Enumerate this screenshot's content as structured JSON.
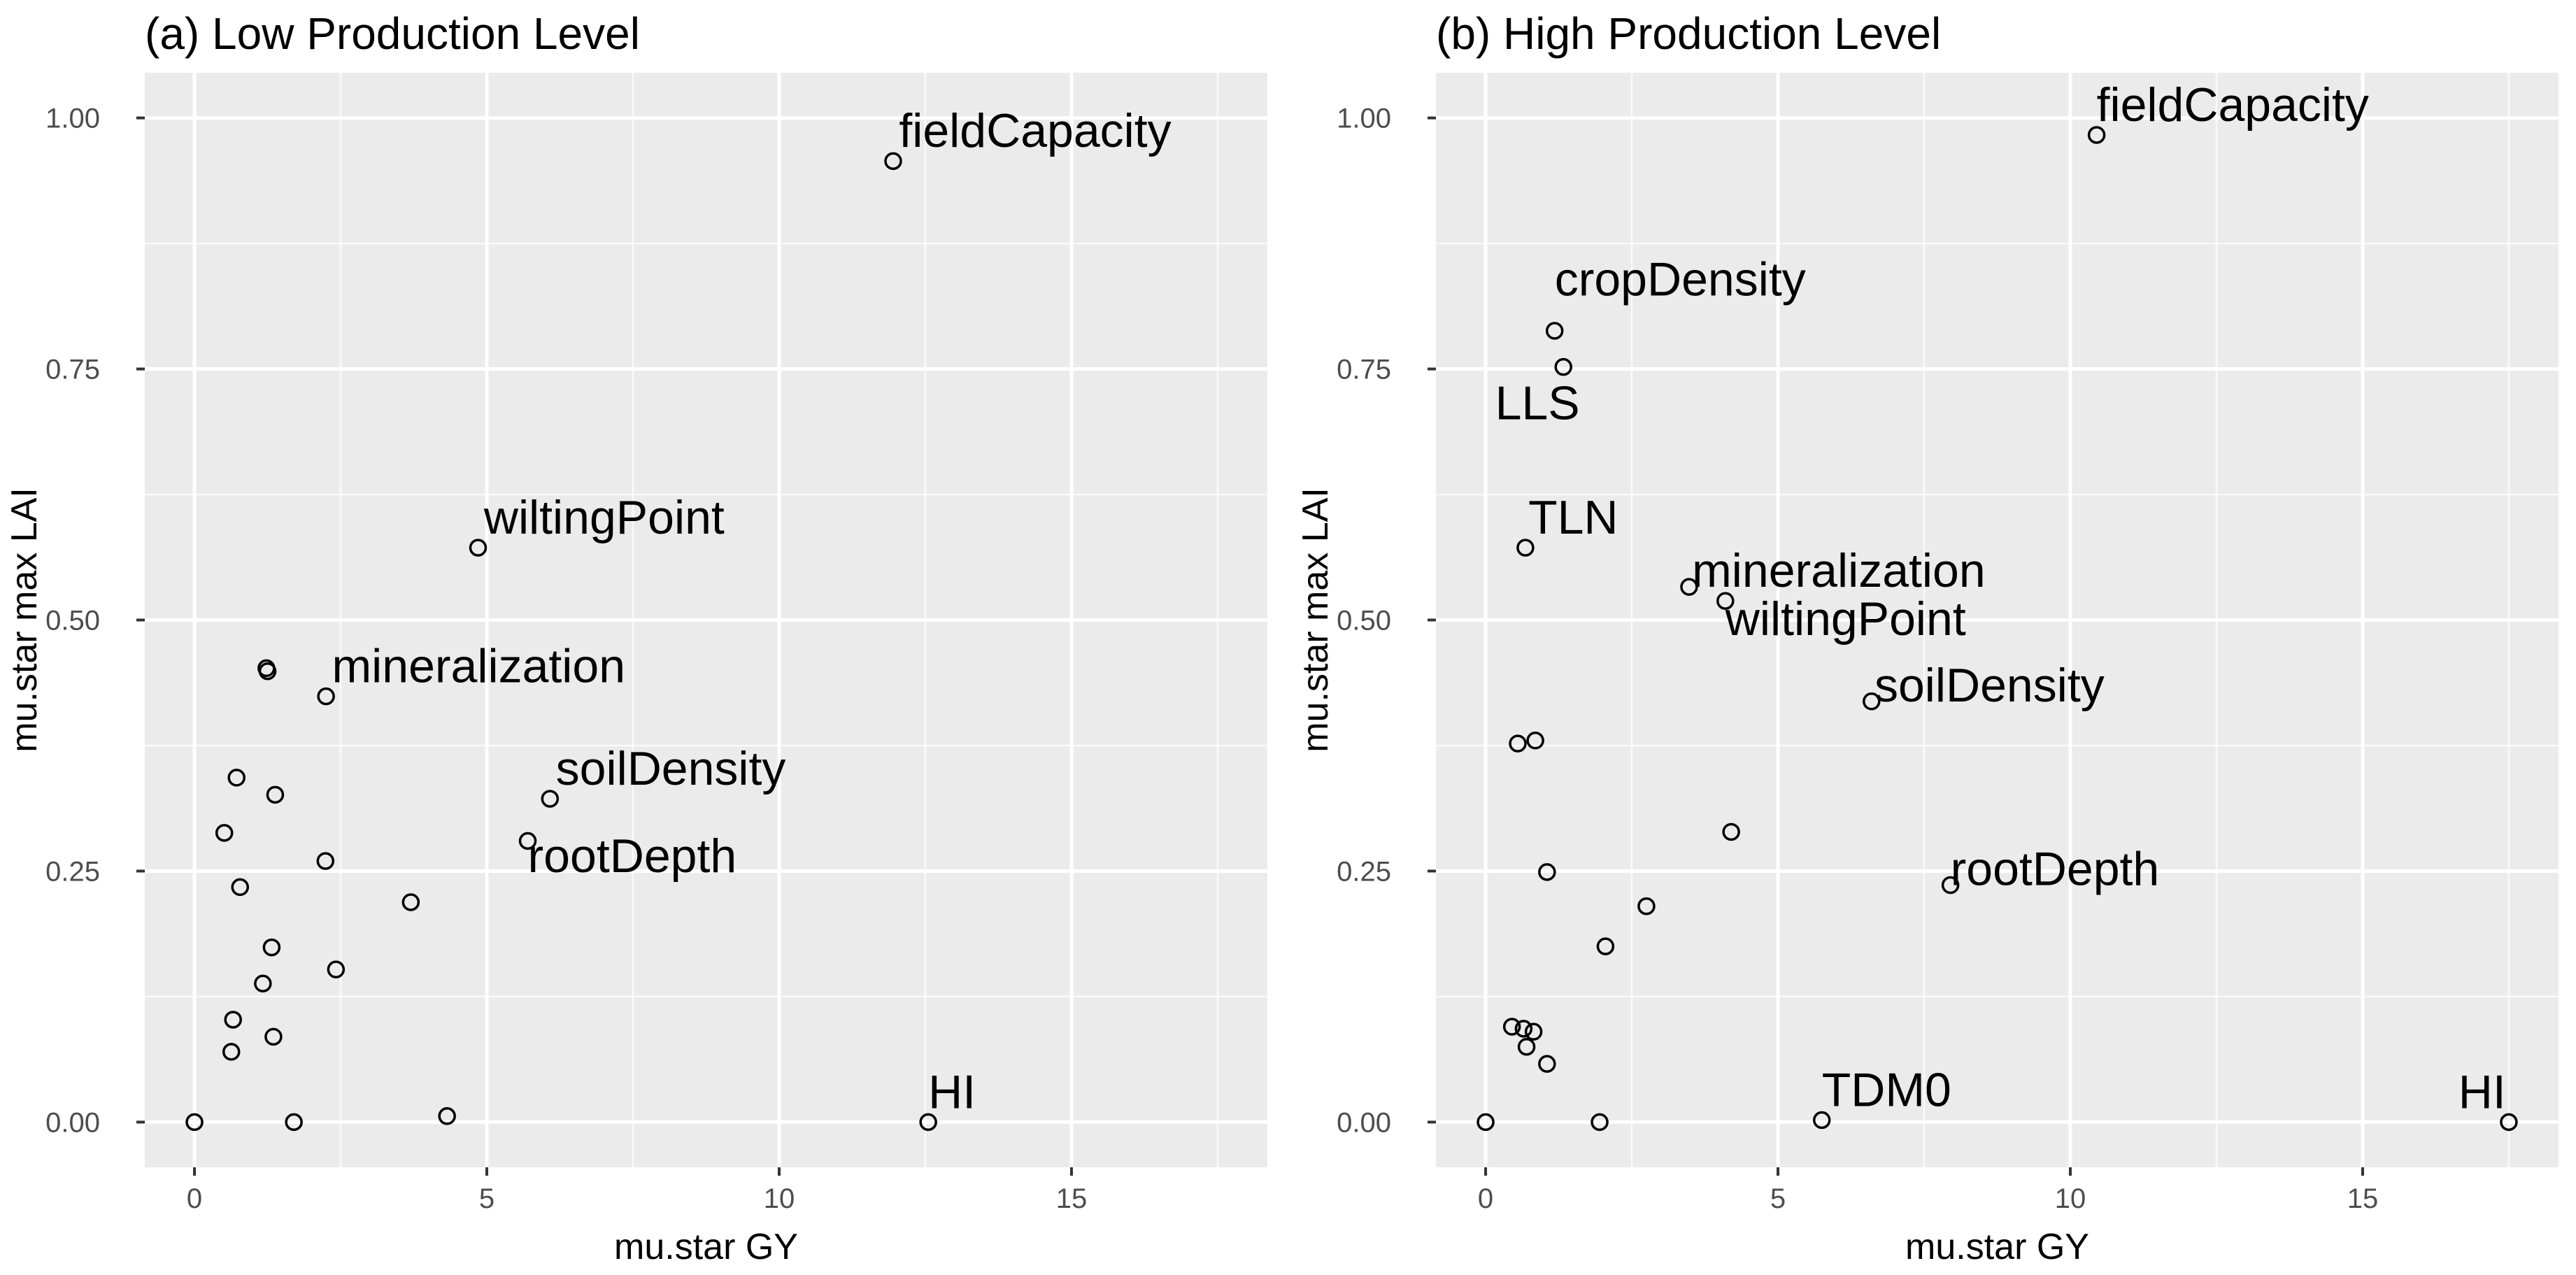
{
  "chart_data": [
    {
      "type": "scatter",
      "title": "(a) Low Production Level",
      "xlabel": "mu.star GY",
      "ylabel": "mu.star max LAI",
      "xlim": [
        -0.85,
        18.35
      ],
      "ylim": [
        -0.045,
        1.045
      ],
      "xticks": [
        0,
        5,
        10,
        15
      ],
      "xtick_labels": [
        "0",
        "5",
        "10",
        "15"
      ],
      "yticks": [
        0,
        0.25,
        0.5,
        0.75,
        1
      ],
      "ytick_labels": [
        "0.00",
        "0.25",
        "0.50",
        "0.75",
        "1.00"
      ],
      "x_minor": [
        2.5,
        7.5,
        12.5,
        17.5
      ],
      "y_minor": [
        0.125,
        0.375,
        0.625,
        0.875
      ],
      "grid": true,
      "points": [
        {
          "x": 11.95,
          "y": 0.957,
          "label": "fieldCapacity",
          "anchor": "start",
          "dx": 0.1,
          "dy": 0.014
        },
        {
          "x": 4.85,
          "y": 0.572,
          "label": "wiltingPoint",
          "anchor": "start",
          "dx": 0.1,
          "dy": 0.014
        },
        {
          "x": 1.23,
          "y": 0.452,
          "label": ""
        },
        {
          "x": 1.25,
          "y": 0.449,
          "label": ""
        },
        {
          "x": 2.25,
          "y": 0.424,
          "label": "mineralization",
          "anchor": "start",
          "dx": 0.1,
          "dy": 0.014
        },
        {
          "x": 0.72,
          "y": 0.343,
          "label": ""
        },
        {
          "x": 1.38,
          "y": 0.326,
          "label": ""
        },
        {
          "x": 6.08,
          "y": 0.322,
          "label": "soilDensity",
          "anchor": "start",
          "dx": 0.1,
          "dy": 0.014
        },
        {
          "x": 0.51,
          "y": 0.288,
          "label": ""
        },
        {
          "x": 5.7,
          "y": 0.28,
          "label": "rootDepth",
          "anchor": "start",
          "dx": 0.0,
          "dy": -0.031
        },
        {
          "x": 2.24,
          "y": 0.26,
          "label": ""
        },
        {
          "x": 0.78,
          "y": 0.234,
          "label": ""
        },
        {
          "x": 3.7,
          "y": 0.219,
          "label": ""
        },
        {
          "x": 1.32,
          "y": 0.174,
          "label": ""
        },
        {
          "x": 2.42,
          "y": 0.152,
          "label": ""
        },
        {
          "x": 1.17,
          "y": 0.138,
          "label": ""
        },
        {
          "x": 0.66,
          "y": 0.102,
          "label": ""
        },
        {
          "x": 1.35,
          "y": 0.085,
          "label": ""
        },
        {
          "x": 0.63,
          "y": 0.07,
          "label": ""
        },
        {
          "x": 0.0,
          "y": 0.0,
          "label": ""
        },
        {
          "x": 1.7,
          "y": 0.0,
          "label": ""
        },
        {
          "x": 4.32,
          "y": 0.006,
          "label": ""
        },
        {
          "x": 12.55,
          "y": 0.0,
          "label": "HI",
          "anchor": "start",
          "dx": 0.0,
          "dy": 0.014
        }
      ]
    },
    {
      "type": "scatter",
      "title": "(b) High Production Level",
      "xlabel": "mu.star GY",
      "ylabel": "mu.star max LAI",
      "xlim": [
        -0.85,
        18.35
      ],
      "ylim": [
        -0.045,
        1.045
      ],
      "xticks": [
        0,
        5,
        10,
        15
      ],
      "xtick_labels": [
        "0",
        "5",
        "10",
        "15"
      ],
      "yticks": [
        0,
        0.25,
        0.5,
        0.75,
        1
      ],
      "ytick_labels": [
        "0.00",
        "0.25",
        "0.50",
        "0.75",
        "1.00"
      ],
      "x_minor": [
        2.5,
        7.5,
        12.5,
        17.5
      ],
      "y_minor": [
        0.125,
        0.375,
        0.625,
        0.875
      ],
      "grid": true,
      "points": [
        {
          "x": 10.45,
          "y": 0.983,
          "label": "fieldCapacity",
          "anchor": "start",
          "dx": 0.0,
          "dy": 0.014
        },
        {
          "x": 1.18,
          "y": 0.788,
          "label": "cropDensity",
          "anchor": "start",
          "dx": 0.0,
          "dy": 0.035
        },
        {
          "x": 1.33,
          "y": 0.752,
          "label": "LLS",
          "anchor": "end",
          "dx": 0.28,
          "dy": -0.052
        },
        {
          "x": 0.68,
          "y": 0.572,
          "label": "TLN",
          "anchor": "start",
          "dx": 0.05,
          "dy": 0.014
        },
        {
          "x": 3.48,
          "y": 0.533,
          "label": "mineralization",
          "anchor": "start",
          "dx": 0.05,
          "dy": 0.0
        },
        {
          "x": 4.1,
          "y": 0.519,
          "label": "wiltingPoint",
          "anchor": "start",
          "dx": 0.0,
          "dy": -0.034
        },
        {
          "x": 6.6,
          "y": 0.419,
          "label": "soilDensity",
          "anchor": "start",
          "dx": 0.05,
          "dy": 0.0
        },
        {
          "x": 0.55,
          "y": 0.377,
          "label": ""
        },
        {
          "x": 0.85,
          "y": 0.38,
          "label": ""
        },
        {
          "x": 4.2,
          "y": 0.289,
          "label": ""
        },
        {
          "x": 1.05,
          "y": 0.249,
          "label": ""
        },
        {
          "x": 7.95,
          "y": 0.236,
          "label": "rootDepth",
          "anchor": "start",
          "dx": 0.0,
          "dy": 0.0
        },
        {
          "x": 2.75,
          "y": 0.215,
          "label": ""
        },
        {
          "x": 2.05,
          "y": 0.175,
          "label": ""
        },
        {
          "x": 0.45,
          "y": 0.095,
          "label": ""
        },
        {
          "x": 0.65,
          "y": 0.093,
          "label": ""
        },
        {
          "x": 0.82,
          "y": 0.09,
          "label": ""
        },
        {
          "x": 0.7,
          "y": 0.075,
          "label": ""
        },
        {
          "x": 1.05,
          "y": 0.058,
          "label": ""
        },
        {
          "x": 0.0,
          "y": 0.0,
          "label": ""
        },
        {
          "x": 1.95,
          "y": 0.0,
          "label": ""
        },
        {
          "x": 5.75,
          "y": 0.002,
          "label": "TDM0",
          "anchor": "start",
          "dx": 0.0,
          "dy": 0.014
        },
        {
          "x": 17.5,
          "y": 0.0,
          "label": "HI",
          "anchor": "end",
          "dx": -0.05,
          "dy": 0.014
        }
      ]
    }
  ]
}
